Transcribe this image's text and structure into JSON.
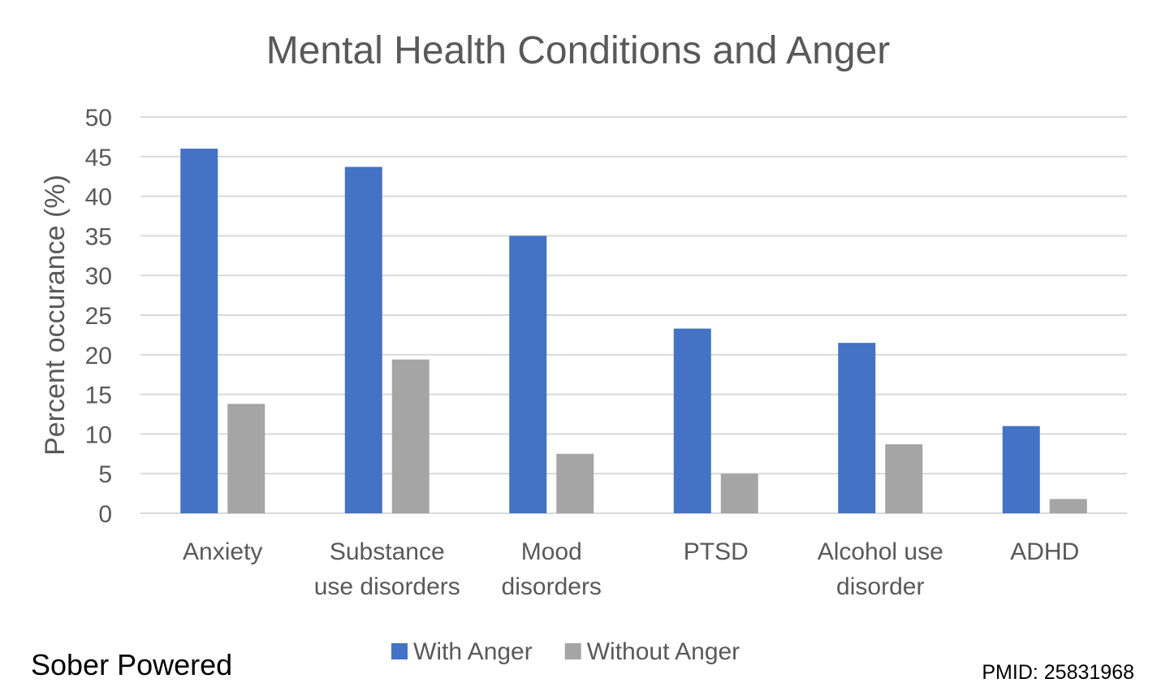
{
  "chart_data": {
    "type": "bar",
    "title": "Mental Health Conditions and Anger",
    "xlabel": "",
    "ylabel": "Percent occurance (%)",
    "ylim": [
      0,
      50
    ],
    "yticks": [
      0,
      5,
      10,
      15,
      20,
      25,
      30,
      35,
      40,
      45,
      50
    ],
    "grid": true,
    "legend_position": "bottom",
    "categories": [
      [
        "Anxiety"
      ],
      [
        "Substance",
        "use disorders"
      ],
      [
        "Mood",
        "disorders"
      ],
      [
        "PTSD"
      ],
      [
        "Alcohol use",
        "disorder"
      ],
      [
        "ADHD"
      ]
    ],
    "series": [
      {
        "name": "With Anger",
        "color": "#4472c4",
        "values": [
          46,
          43.7,
          35,
          23.3,
          21.5,
          11
        ]
      },
      {
        "name": "Without Anger",
        "color": "#a5a5a5",
        "values": [
          13.8,
          19.4,
          7.5,
          5,
          8.7,
          1.8
        ]
      }
    ]
  },
  "footer": {
    "brand": "Sober Powered",
    "source": "PMID: 25831968"
  }
}
